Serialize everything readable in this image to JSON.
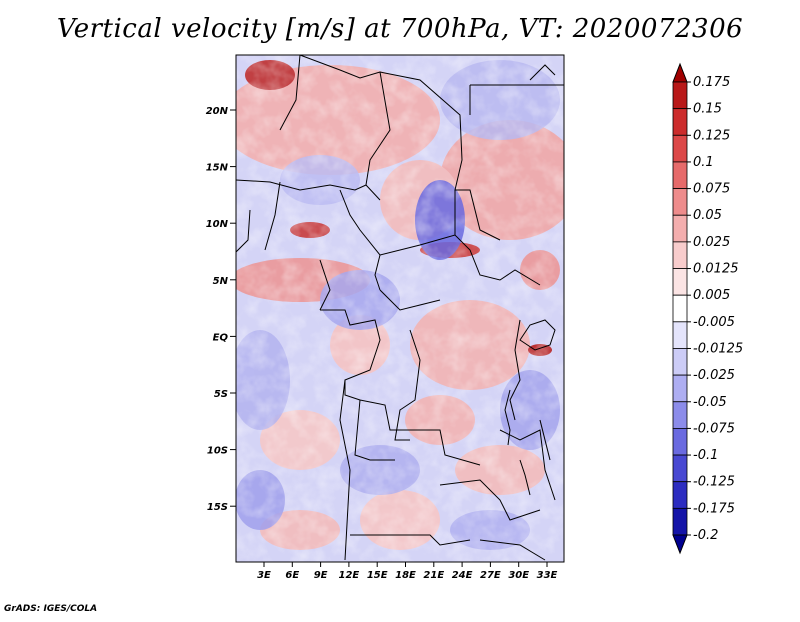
{
  "title": "Vertical velocity [m/s] at 700hPa, VT: 2020072306",
  "footer": "GrADS: IGES/COLA",
  "map": {
    "lat_ticks": [
      "20N",
      "15N",
      "10N",
      "5N",
      "EQ",
      "5S",
      "10S",
      "15S"
    ],
    "lon_ticks": [
      "3E",
      "6E",
      "9E",
      "12E",
      "15E",
      "18E",
      "21E",
      "24E",
      "27E",
      "30E",
      "33E"
    ]
  },
  "colorbar": {
    "labels": [
      "0.175",
      "0.15",
      "0.125",
      "0.1",
      "0.075",
      "0.05",
      "0.025",
      "0.0125",
      "0.005",
      "-0.005",
      "-0.0125",
      "-0.025",
      "-0.05",
      "-0.075",
      "-0.1",
      "-0.125",
      "-0.175",
      "-0.2"
    ],
    "colors": [
      "#a00000",
      "#b81818",
      "#cc2c2c",
      "#dc4848",
      "#e66a6a",
      "#ee8c8c",
      "#f4aeae",
      "#f8cccc",
      "#fbe4e4",
      "#ffffff",
      "#e4e4fb",
      "#ccccf6",
      "#aeaef2",
      "#8c8cea",
      "#6a6ae0",
      "#4848d2",
      "#2c2cc0",
      "#1414a8",
      "#000090"
    ]
  }
}
